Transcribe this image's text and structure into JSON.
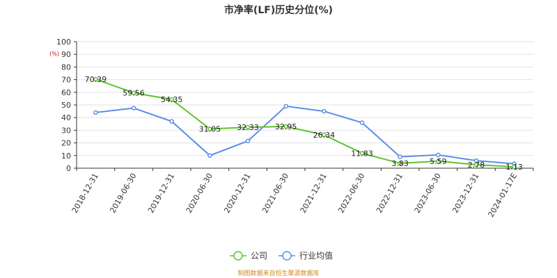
{
  "chart_data": {
    "type": "line",
    "title": "市净率(LF)历史分位(%)",
    "y_unit": "(%)",
    "ylim": [
      0,
      100
    ],
    "y_ticks": [
      0,
      10,
      20,
      30,
      40,
      50,
      60,
      70,
      80,
      90,
      100
    ],
    "categories": [
      "2018-12-31",
      "2019-06-30",
      "2019-12-31",
      "2020-06-30",
      "2020-12-31",
      "2021-06-30",
      "2021-12-31",
      "2022-06-30",
      "2022-12-31",
      "2023-06-30",
      "2023-12-31",
      "2024-01-17E"
    ],
    "series": [
      {
        "name": "公司",
        "color": "#5cc42a",
        "values": [
          70.39,
          59.56,
          54.35,
          31.05,
          32.33,
          32.95,
          26.34,
          11.83,
          3.83,
          5.59,
          2.78,
          1.13
        ],
        "labels": [
          "70.39",
          "59.56",
          "54.35",
          "31.05",
          "32.33",
          "32.95",
          "26.34",
          "11.83",
          "3.83",
          "5.59",
          "2.78",
          "1.13"
        ]
      },
      {
        "name": "行业均值",
        "color": "#5b8ee6",
        "values": [
          44.0,
          47.5,
          37.0,
          10.0,
          21.5,
          49.0,
          45.0,
          36.0,
          9.0,
          10.5,
          6.0,
          3.5
        ]
      }
    ],
    "grid": true,
    "legend_position": "bottom-center",
    "source": "制图数据来自恒生聚源数据库"
  }
}
